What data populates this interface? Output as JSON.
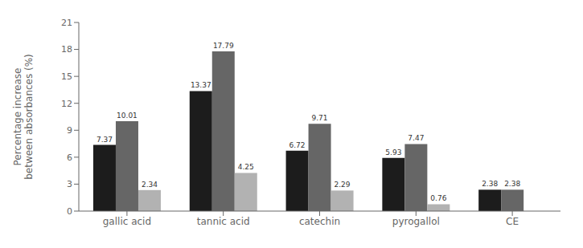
{
  "chart_data": {
    "type": "bar",
    "categories": [
      "gallic acid",
      "tannic acid",
      "catechin",
      "pyrogallol",
      "CE"
    ],
    "series": [
      {
        "color": "#1c1c1c",
        "values": [
          7.37,
          13.37,
          6.72,
          5.93,
          2.38
        ]
      },
      {
        "color": "#666666",
        "values": [
          10.01,
          17.79,
          9.71,
          7.47,
          2.38
        ]
      },
      {
        "color": "#b2b2b2",
        "values": [
          2.34,
          4.25,
          2.29,
          0.76,
          null
        ]
      }
    ],
    "ylabel": "Percentage increase\nbetween absorbances (%)",
    "ylim": [
      0,
      21
    ],
    "yticks": [
      0,
      3,
      6,
      9,
      12,
      15,
      18,
      21
    ],
    "grid": false,
    "data_labels": true
  }
}
